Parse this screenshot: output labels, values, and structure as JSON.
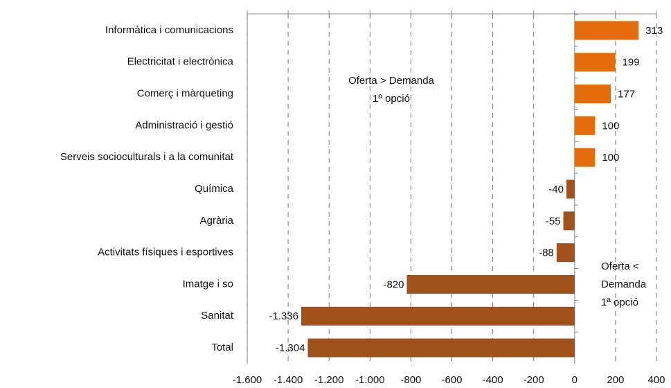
{
  "chart_data": {
    "type": "hbar",
    "categories": [
      "Informàtica i comunicacions",
      "Electricitat i electrònica",
      "Comerç i màrqueting",
      "Administració i gestió",
      "Serveis socioculturals i a la comunitat",
      "Química",
      "Agrària",
      "Activitats físiques i esportives",
      "Imatge i so",
      "Sanitat",
      "Total"
    ],
    "values": [
      313,
      199,
      177,
      100,
      100,
      -40,
      -55,
      -88,
      -820,
      -1336,
      -1304
    ],
    "value_labels": [
      "313",
      "199",
      "177",
      "100",
      "100",
      "-40",
      "-55",
      "-88",
      "-820",
      "-1.336",
      "-1.304"
    ],
    "colors": [
      "#e46c0a",
      "#e46c0a",
      "#e46c0a",
      "#e46c0a",
      "#e46c0a",
      "#a0521a",
      "#a0521a",
      "#a0521a",
      "#a0521a",
      "#a0521a",
      "#a0521a"
    ],
    "xlim": [
      -1600,
      400
    ],
    "xticks": [
      {
        "value": -1600,
        "label": "-1.600"
      },
      {
        "value": -1400,
        "label": "-1.400"
      },
      {
        "value": -1200,
        "label": "-1.200"
      },
      {
        "value": -1000,
        "label": "-1.000"
      },
      -800,
      -600,
      -400,
      -200,
      0,
      200,
      400
    ],
    "grid": true,
    "annotations": [
      [
        "Oferta > Demanda",
        "1ª opció"
      ],
      [
        "Oferta <",
        "Demanda",
        "1ª opció"
      ]
    ]
  }
}
